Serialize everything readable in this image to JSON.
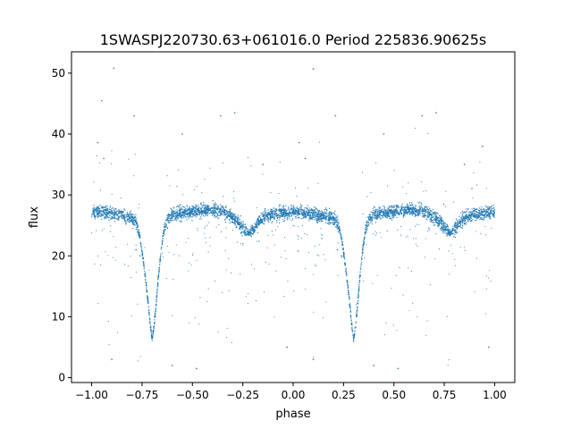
{
  "chart_data": {
    "type": "scatter",
    "title": "1SWASPJ220730.63+061016.0 Period 225836.90625s",
    "xlabel": "phase",
    "ylabel": "flux",
    "xlim": [
      -1.1,
      1.1
    ],
    "ylim": [
      -0.8,
      53.5
    ],
    "xticks": [
      -1.0,
      -0.75,
      -0.5,
      -0.25,
      0.0,
      0.25,
      0.5,
      0.75,
      1.0
    ],
    "xtick_labels": [
      "−1.00",
      "−0.75",
      "−0.50",
      "−0.25",
      "0.00",
      "0.25",
      "0.50",
      "0.75",
      "1.00"
    ],
    "yticks": [
      0,
      10,
      20,
      30,
      40,
      50
    ],
    "ytick_labels": [
      "0",
      "10",
      "20",
      "30",
      "40",
      "50"
    ],
    "grid": false,
    "point_color": "#1f77b4",
    "series": [
      {
        "phase": [
          -1.0,
          -0.96,
          -0.92,
          -0.88,
          -0.84,
          -0.8,
          -0.78,
          -0.76,
          -0.745,
          -0.73,
          -0.72,
          -0.71,
          -0.7,
          -0.69,
          -0.68,
          -0.67,
          -0.655,
          -0.64,
          -0.62,
          -0.6,
          -0.55,
          -0.5,
          -0.45,
          -0.4,
          -0.35,
          -0.3,
          -0.27,
          -0.24,
          -0.22,
          -0.2,
          -0.17,
          -0.14,
          -0.1,
          -0.05,
          0.0,
          0.05,
          0.1,
          0.15,
          0.2,
          0.22,
          0.24,
          0.255,
          0.27,
          0.28,
          0.29,
          0.3,
          0.31,
          0.32,
          0.33,
          0.345,
          0.36,
          0.38,
          0.4,
          0.45,
          0.5,
          0.55,
          0.6,
          0.65,
          0.7,
          0.73,
          0.76,
          0.78,
          0.8,
          0.83,
          0.86,
          0.9,
          0.95,
          1.0
        ],
        "flux": [
          27.0,
          27.3,
          27.0,
          26.8,
          26.5,
          26.2,
          25.5,
          23.0,
          19.5,
          15.5,
          12.5,
          9.0,
          6.2,
          8.5,
          12.0,
          16.0,
          21.0,
          24.5,
          26.3,
          26.8,
          27.0,
          27.3,
          27.5,
          27.6,
          27.3,
          26.3,
          25.5,
          24.3,
          23.7,
          24.3,
          25.6,
          26.5,
          26.8,
          27.0,
          27.2,
          27.0,
          26.8,
          26.5,
          26.2,
          25.5,
          23.0,
          19.5,
          15.5,
          12.5,
          9.0,
          6.2,
          8.5,
          12.0,
          16.0,
          21.0,
          24.5,
          26.3,
          26.8,
          27.0,
          27.3,
          27.5,
          27.6,
          27.3,
          26.3,
          25.5,
          24.3,
          23.7,
          24.3,
          25.6,
          26.5,
          26.8,
          27.0,
          27.2
        ]
      }
    ],
    "outliers": [
      {
        "phase": -0.89,
        "flux": 50.8
      },
      {
        "phase": -0.95,
        "flux": 45.5
      },
      {
        "phase": -0.79,
        "flux": 43.0
      },
      {
        "phase": -0.36,
        "flux": 43.0
      },
      {
        "phase": -0.29,
        "flux": 43.5
      },
      {
        "phase": 0.1,
        "flux": 50.7
      },
      {
        "phase": 0.21,
        "flux": 43.0
      },
      {
        "phase": 0.64,
        "flux": 43.0
      },
      {
        "phase": 0.71,
        "flux": 43.5
      },
      {
        "phase": -0.97,
        "flux": 38.6
      },
      {
        "phase": 0.03,
        "flux": 38.6
      },
      {
        "phase": 0.94,
        "flux": 38.0
      },
      {
        "phase": -0.94,
        "flux": 36.0
      },
      {
        "phase": 0.06,
        "flux": 36.0
      },
      {
        "phase": -0.55,
        "flux": 40.0
      },
      {
        "phase": 0.45,
        "flux": 40.0
      },
      {
        "phase": 0.85,
        "flux": 35.0
      },
      {
        "phase": -0.15,
        "flux": 35.0
      },
      {
        "phase": -0.6,
        "flux": 2.0
      },
      {
        "phase": 0.4,
        "flux": 2.0
      },
      {
        "phase": -0.48,
        "flux": 1.5
      },
      {
        "phase": 0.52,
        "flux": 1.5
      },
      {
        "phase": -0.9,
        "flux": 3.0
      },
      {
        "phase": 0.1,
        "flux": 3.0
      },
      {
        "phase": 0.97,
        "flux": 5.0
      },
      {
        "phase": -0.03,
        "flux": 5.0
      },
      {
        "phase": -0.78,
        "flux": 21.0
      },
      {
        "phase": 0.22,
        "flux": 21.0
      },
      {
        "phase": -0.76,
        "flux": 20.0
      },
      {
        "phase": 0.24,
        "flux": 20.0
      }
    ]
  }
}
